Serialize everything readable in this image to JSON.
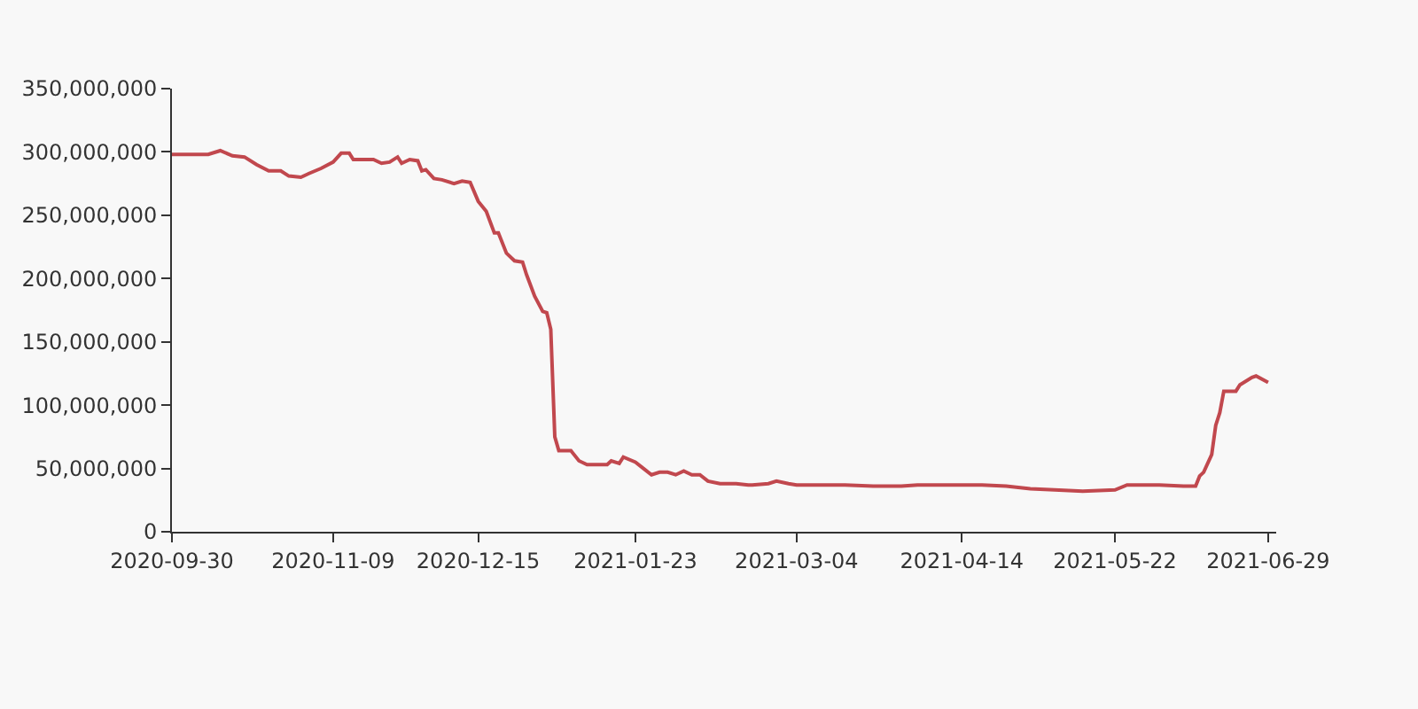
{
  "chart_data": {
    "type": "line",
    "x": [
      "2020-09-30",
      "2020-10-09",
      "2020-10-12",
      "2020-10-15",
      "2020-10-18",
      "2020-10-21",
      "2020-10-24",
      "2020-10-27",
      "2020-10-29",
      "2020-11-01",
      "2020-11-03",
      "2020-11-06",
      "2020-11-09",
      "2020-11-11",
      "2020-11-13",
      "2020-11-14",
      "2020-11-19",
      "2020-11-21",
      "2020-11-23",
      "2020-11-25",
      "2020-11-26",
      "2020-11-28",
      "2020-11-30",
      "2020-12-01",
      "2020-12-02",
      "2020-12-04",
      "2020-12-06",
      "2020-12-09",
      "2020-12-11",
      "2020-12-13",
      "2020-12-15",
      "2020-12-17",
      "2020-12-19",
      "2020-12-20",
      "2020-12-22",
      "2020-12-24",
      "2020-12-26",
      "2020-12-27",
      "2020-12-29",
      "2020-12-31",
      "2021-01-01",
      "2021-01-02",
      "2021-01-03",
      "2021-01-04",
      "2021-01-07",
      "2021-01-09",
      "2021-01-11",
      "2021-01-16",
      "2021-01-17",
      "2021-01-19",
      "2021-01-20",
      "2021-01-23",
      "2021-01-25",
      "2021-01-27",
      "2021-01-29",
      "2021-01-31",
      "2021-02-02",
      "2021-02-04",
      "2021-02-06",
      "2021-02-08",
      "2021-02-10",
      "2021-02-13",
      "2021-02-17",
      "2021-02-20",
      "2021-02-21",
      "2021-02-25",
      "2021-02-27",
      "2021-03-02",
      "2021-03-04",
      "2021-03-09",
      "2021-03-16",
      "2021-03-23",
      "2021-03-30",
      "2021-04-03",
      "2021-04-14",
      "2021-04-19",
      "2021-04-25",
      "2021-05-01",
      "2021-05-07",
      "2021-05-14",
      "2021-05-22",
      "2021-05-25",
      "2021-06-02",
      "2021-06-08",
      "2021-06-11",
      "2021-06-12",
      "2021-06-13",
      "2021-06-15",
      "2021-06-16",
      "2021-06-17",
      "2021-06-18",
      "2021-06-21",
      "2021-06-22",
      "2021-06-25",
      "2021-06-26",
      "2021-06-29"
    ],
    "series": [
      {
        "color": "#c1484e",
        "values": [
          298000000,
          298000000,
          301000000,
          297000000,
          296000000,
          290000000,
          285000000,
          285000000,
          281000000,
          280000000,
          283000000,
          287000000,
          292000000,
          299000000,
          299000000,
          294000000,
          294000000,
          291000000,
          292000000,
          296000000,
          291000000,
          294000000,
          293000000,
          285000000,
          286000000,
          279000000,
          278000000,
          275000000,
          277000000,
          276000000,
          261000000,
          253000000,
          236000000,
          236000000,
          220000000,
          214000000,
          213000000,
          203000000,
          186000000,
          174000000,
          173000000,
          160000000,
          75000000,
          64000000,
          64000000,
          56000000,
          53000000,
          53000000,
          56000000,
          54000000,
          59000000,
          55000000,
          50000000,
          45000000,
          47000000,
          47000000,
          45000000,
          48000000,
          45000000,
          45000000,
          40000000,
          38000000,
          38000000,
          37000000,
          37000000,
          38000000,
          40000000,
          38000000,
          37000000,
          37000000,
          37000000,
          36000000,
          36000000,
          37000000,
          37000000,
          37000000,
          36000000,
          34000000,
          33000000,
          32000000,
          33000000,
          37000000,
          37000000,
          36000000,
          36000000,
          44000000,
          47000000,
          61000000,
          84000000,
          94000000,
          111000000,
          111000000,
          116000000,
          122000000,
          123000000,
          118000000
        ]
      }
    ],
    "xlim": [
      "2020-09-30",
      "2021-07-01"
    ],
    "xticks": [
      "2020-09-30",
      "2020-11-09",
      "2020-12-15",
      "2021-01-23",
      "2021-03-04",
      "2021-04-14",
      "2021-05-22",
      "2021-06-29"
    ],
    "ylim": [
      0,
      350000000
    ],
    "yticks": [
      0,
      {
        "value": 50000000,
        "label": "50,000,000"
      },
      {
        "value": 100000000,
        "label": "100,000,000"
      },
      {
        "value": 150000000,
        "label": "150,000,000"
      },
      {
        "value": 200000000,
        "label": "200,000,000"
      },
      {
        "value": 250000000,
        "label": "250,000,000"
      },
      {
        "value": 300000000,
        "label": "300,000,000"
      },
      {
        "value": 350000000,
        "label": "350,000,000"
      }
    ],
    "grid": false,
    "line_style": "solid"
  }
}
